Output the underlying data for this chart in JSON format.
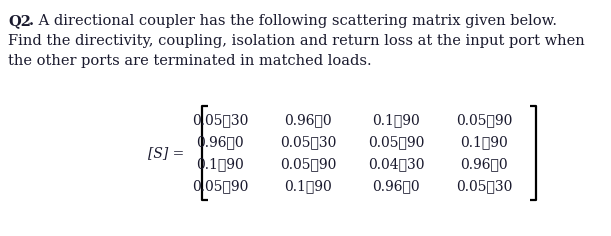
{
  "title_bold": "Q2",
  "title_period": ".",
  "title_text": " A directional coupler has the following scattering matrix given below.",
  "line2": "Find the directivity, coupling, isolation and return loss at the input port when",
  "line3": "the other ports are terminated in matched loads.",
  "label": "[S] =",
  "matrix": [
    [
      "0.05∰30",
      "0.96∰0",
      "0.1∰90",
      "0.05∰90"
    ],
    [
      "0.96∰0",
      "0.05∰30",
      "0.05∰90",
      "0.1∰90"
    ],
    [
      "0.1∰90",
      "0.05∰90",
      "0.04∰30",
      "0.96∰0"
    ],
    [
      "0.05∰90",
      "0.1∰90",
      "0.96∰0",
      "0.05∰30"
    ]
  ],
  "bg_color": "#ffffff",
  "text_color": "#1a1a2e",
  "font_size_body": 10.5,
  "font_size_matrix": 10.0,
  "font_family": "DejaVu Serif"
}
